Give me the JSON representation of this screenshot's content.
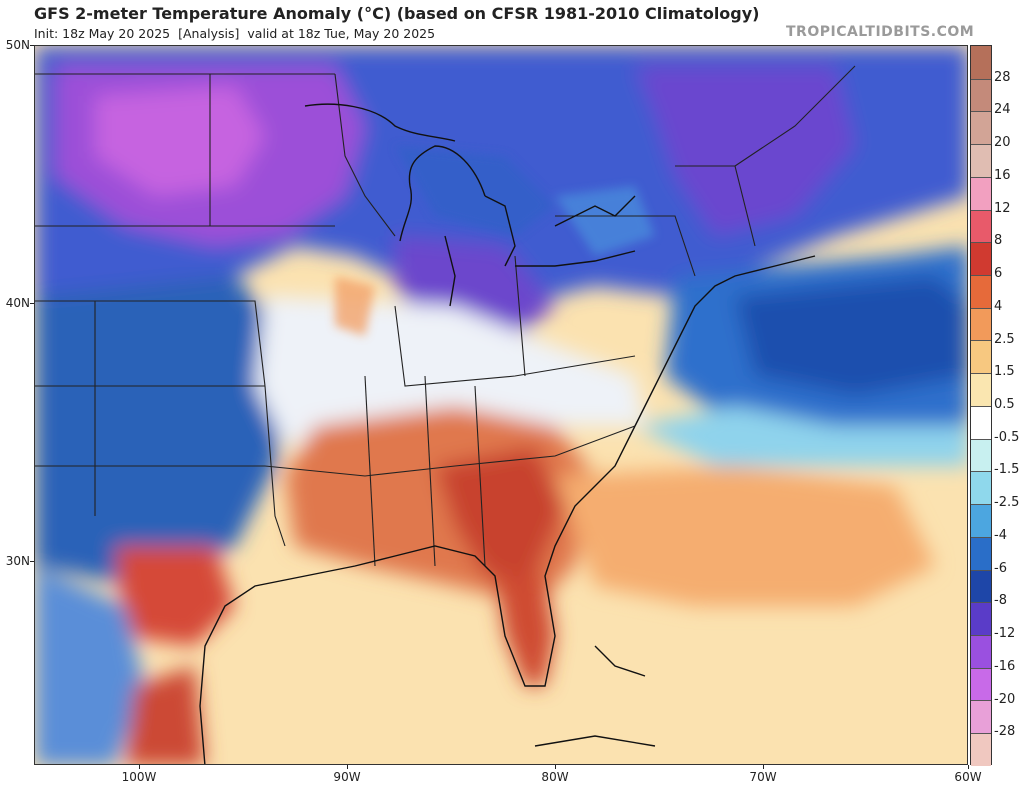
{
  "header": {
    "title": "GFS 2-meter Temperature Anomaly (°C) (based on CFSR 1981-2010 Climatology)",
    "init": "Init: 18z May 20 2025",
    "analysis": "[Analysis]",
    "valid": "valid at 18z Tue, May 20 2025",
    "brand": "TROPICALTIDBITS.COM"
  },
  "map": {
    "lat_labels": [
      "50N",
      "40N",
      "30N"
    ],
    "lon_labels": [
      "100W",
      "90W",
      "80W",
      "70W",
      "60W"
    ]
  },
  "colorbar": {
    "labels": [
      "28",
      "24",
      "20",
      "16",
      "12",
      "8",
      "6",
      "4",
      "2.5",
      "1.5",
      "0.5",
      "-0.5",
      "-1.5",
      "-2.5",
      "-4",
      "-6",
      "-8",
      "-12",
      "-16",
      "-20",
      "-28"
    ],
    "colors": [
      "#b5705a",
      "#c48a7a",
      "#d2a496",
      "#e0bdb2",
      "#f2a0c0",
      "#e85a6a",
      "#d03a30",
      "#e66a3a",
      "#f29a5a",
      "#f7c880",
      "#fae6b0",
      "#ffffff",
      "#c8f0f0",
      "#8fd8ec",
      "#4ca6e0",
      "#2a6ec8",
      "#1e46a8",
      "#5a3cc8",
      "#9a50e0",
      "#c86ae8",
      "#e8a0d8",
      "#f0c8c0"
    ]
  },
  "colors": {
    "ocean_south": "#fbe2b0",
    "gulf_stream": "#f6b77f",
    "atlantic_cool": "#2e6fcc",
    "north_cold": "#3b5bd0",
    "plains_cold": "#2a64b8",
    "warm_southeast": "#e06a48",
    "hot_core": "#c8402e",
    "mixed_white": "#f3f6fa"
  }
}
